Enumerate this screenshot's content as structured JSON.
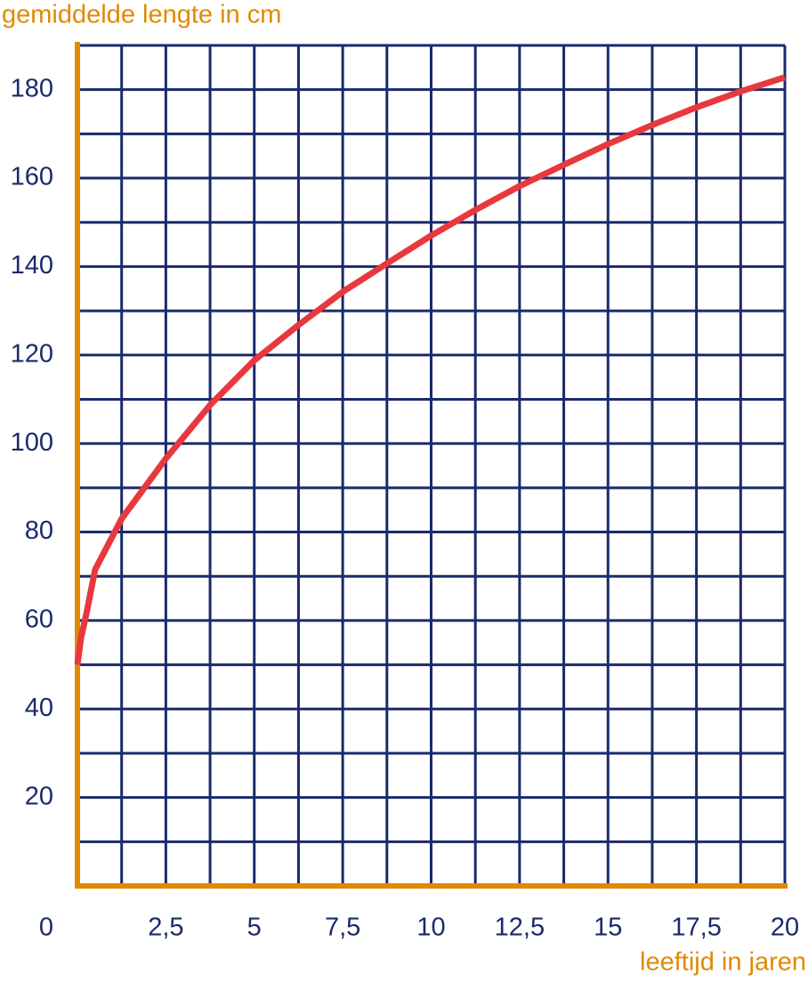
{
  "chart_data": {
    "type": "line",
    "y_label": "gemiddelde lengte in cm",
    "x_label": "leeftijd in jaren",
    "x": [
      0,
      0.1,
      0.25,
      0.5,
      1.25,
      2.5,
      3.75,
      5,
      6.25,
      7.5,
      8.75,
      10,
      11.25,
      12.5,
      13.75,
      15,
      16.25,
      17.5,
      18.75,
      20
    ],
    "series": [
      {
        "color": "#e8383d",
        "values": [
          50,
          56,
          61.4,
          71.5,
          83,
          96.6,
          108.7,
          118.8,
          126.8,
          134.3,
          140.7,
          147,
          152.8,
          158.2,
          163,
          167.7,
          172,
          176,
          179.6,
          182.8
        ]
      }
    ],
    "xlim": [
      0,
      20
    ],
    "ylim": [
      0,
      190
    ],
    "xticks": [
      0,
      {
        "value": 2.5,
        "label": "2,5"
      },
      5,
      {
        "value": 7.5,
        "label": "7,5"
      },
      10,
      {
        "value": 12.5,
        "label": "12,5"
      },
      15,
      {
        "value": 17.5,
        "label": "17,5"
      },
      20
    ],
    "yticks": [
      20,
      40,
      60,
      80,
      100,
      120,
      140,
      160,
      180
    ],
    "xgrid": [
      1.25,
      2.5,
      3.75,
      5,
      6.25,
      7.5,
      8.75,
      10,
      11.25,
      12.5,
      13.75,
      15,
      16.25,
      17.5,
      18.75,
      20
    ],
    "ygrid": [
      10,
      20,
      30,
      40,
      50,
      60,
      70,
      80,
      90,
      100,
      110,
      120,
      130,
      140,
      150,
      160,
      170,
      180,
      190
    ],
    "grid_color": "#1a2a6c",
    "axis_color": "#e08a00"
  }
}
